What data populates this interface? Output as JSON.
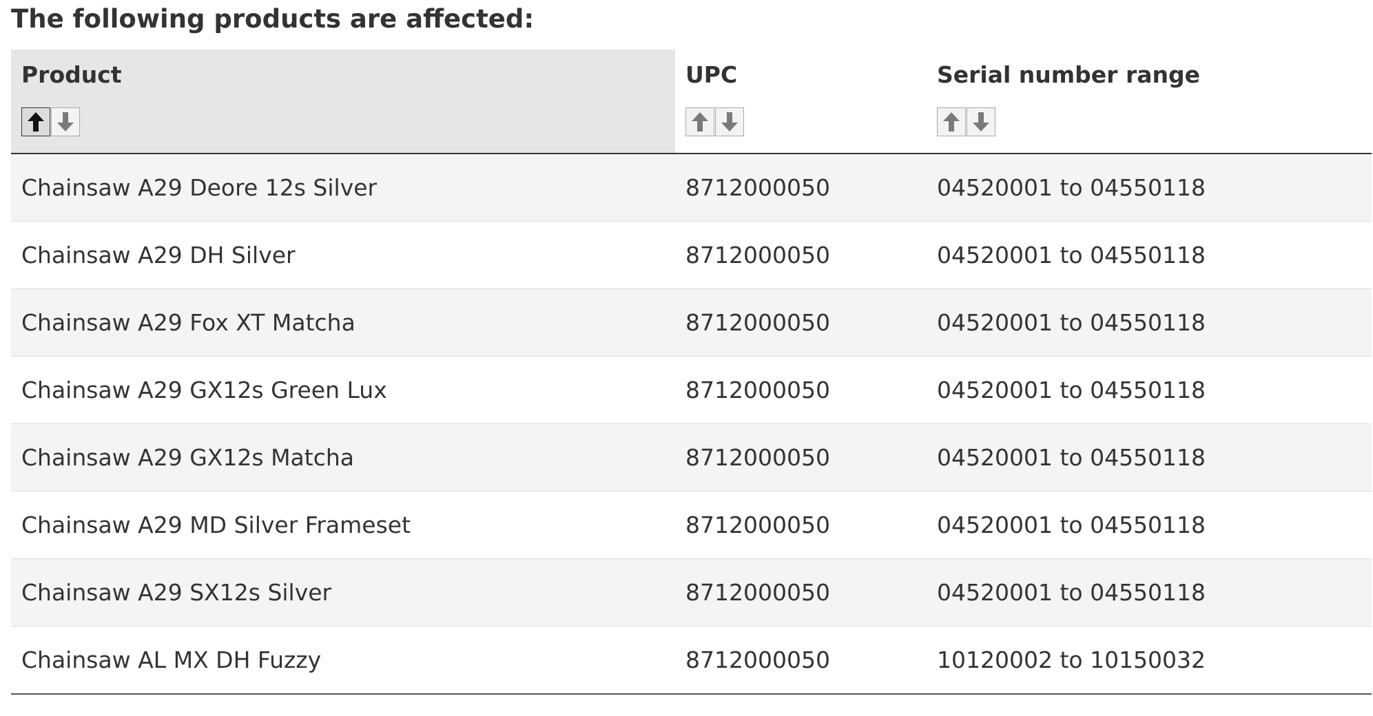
{
  "heading": "The following products are affected:",
  "table": {
    "columns": [
      {
        "label": "Product",
        "sort_state": "ascending"
      },
      {
        "label": "UPC",
        "sort_state": "none"
      },
      {
        "label": "Serial number range",
        "sort_state": "none"
      }
    ],
    "rows": [
      {
        "product": "Chainsaw A29 Deore 12s Silver",
        "upc": "8712000050",
        "serial": "04520001 to 04550118"
      },
      {
        "product": "Chainsaw A29 DH Silver",
        "upc": "8712000050",
        "serial": "04520001 to 04550118"
      },
      {
        "product": "Chainsaw A29 Fox XT Matcha",
        "upc": "8712000050",
        "serial": "04520001 to 04550118"
      },
      {
        "product": "Chainsaw A29 GX12s Green Lux",
        "upc": "8712000050",
        "serial": "04520001 to 04550118"
      },
      {
        "product": "Chainsaw A29 GX12s Matcha",
        "upc": "8712000050",
        "serial": "04520001 to 04550118"
      },
      {
        "product": "Chainsaw A29 MD Silver Frameset",
        "upc": "8712000050",
        "serial": "04520001 to 04550118"
      },
      {
        "product": "Chainsaw A29 SX12s Silver",
        "upc": "8712000050",
        "serial": "04520001 to 04550118"
      },
      {
        "product": "Chainsaw AL MX DH Fuzzy",
        "upc": "8712000050",
        "serial": "10120002 to 10150032"
      }
    ]
  },
  "icons": {
    "sort_up": "arrow-up-icon",
    "sort_down": "arrow-down-icon"
  },
  "colors": {
    "sorted_header_bg": "#e6e6e6",
    "striped_row_bg": "#f4f4f4",
    "active_arrow": "#111111",
    "inactive_arrow": "#7a7a7a"
  }
}
